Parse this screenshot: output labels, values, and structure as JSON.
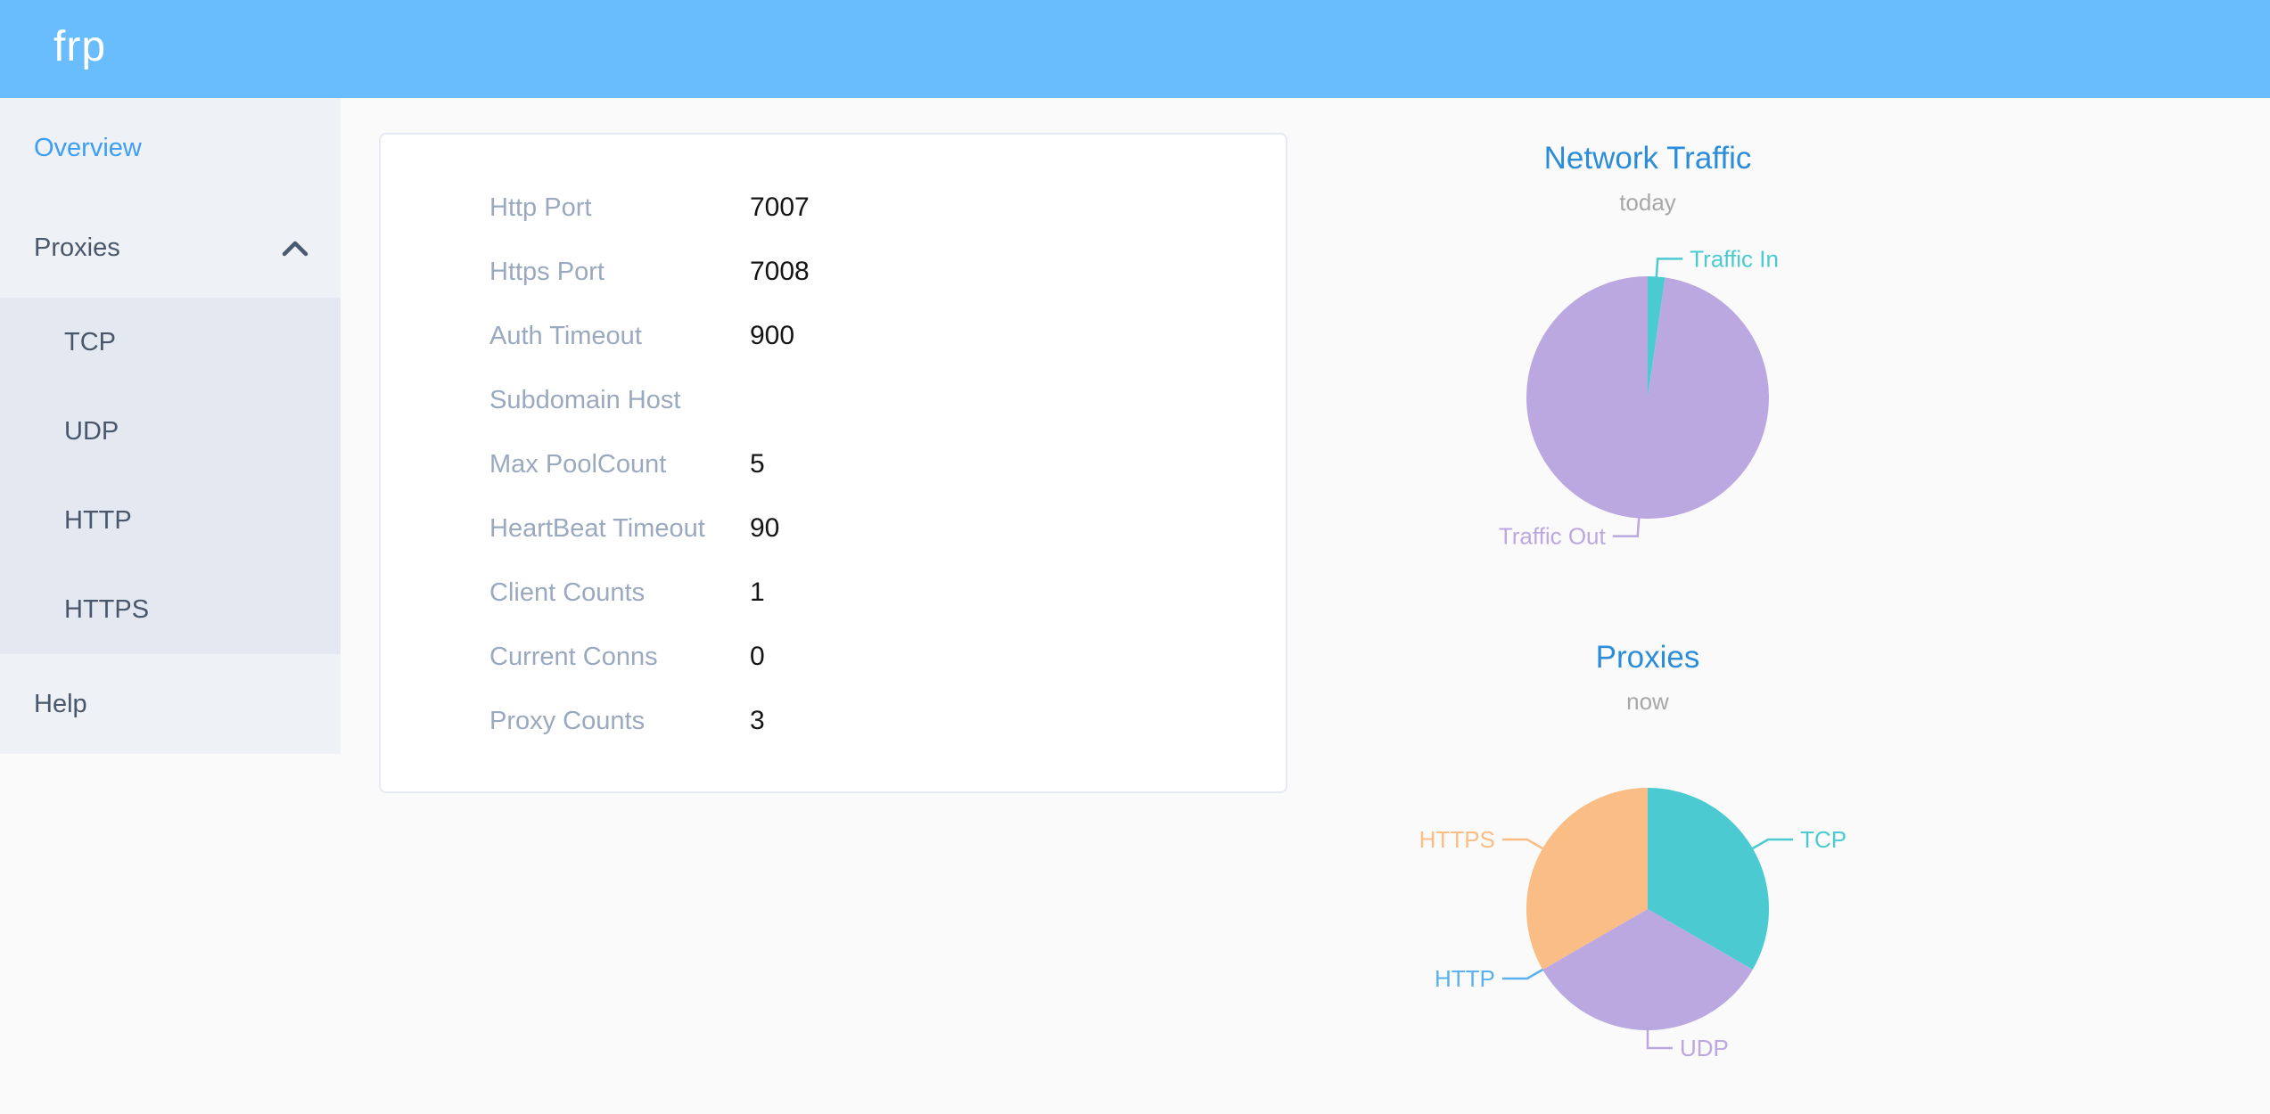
{
  "header": {
    "logo": "frp"
  },
  "colors": {
    "header_bg": "#6abdfc",
    "sidebar_bg": "#eef1f6",
    "submenu_bg": "#e4e8f1",
    "menu_text": "#48576a",
    "menu_active": "#3d9ef5",
    "chart_title": "#2b8dd9",
    "teal": "#4bcbd1",
    "purple": "#bba8e1",
    "blue": "#5ab1ef",
    "orange": "#f9bd85"
  },
  "sidebar": {
    "items": [
      {
        "label": "Overview"
      },
      {
        "label": "Proxies"
      },
      {
        "label": "TCP"
      },
      {
        "label": "UDP"
      },
      {
        "label": "HTTP"
      },
      {
        "label": "HTTPS"
      },
      {
        "label": "Help"
      }
    ]
  },
  "server_info": {
    "rows": [
      {
        "label": "Http Port",
        "value": "7007"
      },
      {
        "label": "Https Port",
        "value": "7008"
      },
      {
        "label": "Auth Timeout",
        "value": "900"
      },
      {
        "label": "Subdomain Host",
        "value": ""
      },
      {
        "label": "Max PoolCount",
        "value": "5"
      },
      {
        "label": "HeartBeat Timeout",
        "value": "90"
      },
      {
        "label": "Client Counts",
        "value": "1"
      },
      {
        "label": "Current Conns",
        "value": "0"
      },
      {
        "label": "Proxy Counts",
        "value": "3"
      }
    ]
  },
  "chart_data": [
    {
      "type": "pie",
      "title": "Network Traffic",
      "subtitle": "today",
      "legend_position": "outside-labels",
      "unit": "percent",
      "series": [
        {
          "name": "Traffic In",
          "value": 2.3,
          "color": "#4bcbd1"
        },
        {
          "name": "Traffic Out",
          "value": 97.7,
          "color": "#bba8e1"
        }
      ]
    },
    {
      "type": "pie",
      "title": "Proxies",
      "subtitle": "now",
      "legend_position": "outside-labels",
      "unit": "count",
      "series": [
        {
          "name": "TCP",
          "value": 1,
          "color": "#4bcbd1"
        },
        {
          "name": "UDP",
          "value": 1,
          "color": "#bba8e1"
        },
        {
          "name": "HTTP",
          "value": 0,
          "color": "#5ab1ef"
        },
        {
          "name": "HTTPS",
          "value": 1,
          "color": "#f9bd85"
        }
      ]
    }
  ]
}
